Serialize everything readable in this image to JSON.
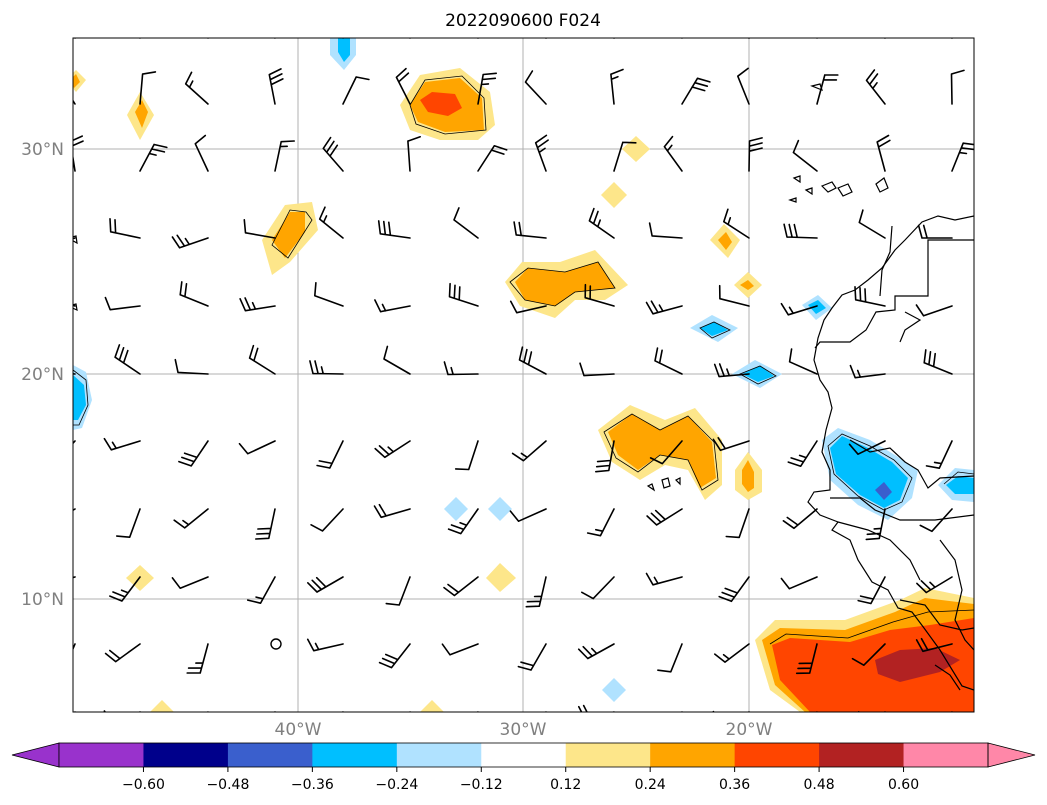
{
  "title": "2022090600 F024",
  "map": {
    "lat_labels": [
      "30°N",
      "20°N",
      "10°N"
    ],
    "lon_labels": [
      "40°W",
      "30°W",
      "20°W"
    ],
    "extent": {
      "lon": [
        -50,
        -10
      ],
      "lat": [
        5,
        35
      ]
    },
    "grid": true
  },
  "colorbar": {
    "labels": [
      "−0.60",
      "−0.48",
      "−0.36",
      "−0.24",
      "−0.12",
      "0.12",
      "0.24",
      "0.36",
      "0.48",
      "0.60"
    ],
    "colors": {
      "under": "#9932cc",
      "bins": [
        "#00008b",
        "#3a5fcd",
        "#00bfff",
        "#b0e2ff",
        "#ffffff",
        "#fde68a",
        "#ffa500",
        "#ff4500",
        "#b22222"
      ],
      "over": "#ff87a8"
    },
    "extend": "both"
  },
  "accent_colors": {
    "grid": "#b0b0b0",
    "coastline": "#000000",
    "barbs": "#000000"
  }
}
